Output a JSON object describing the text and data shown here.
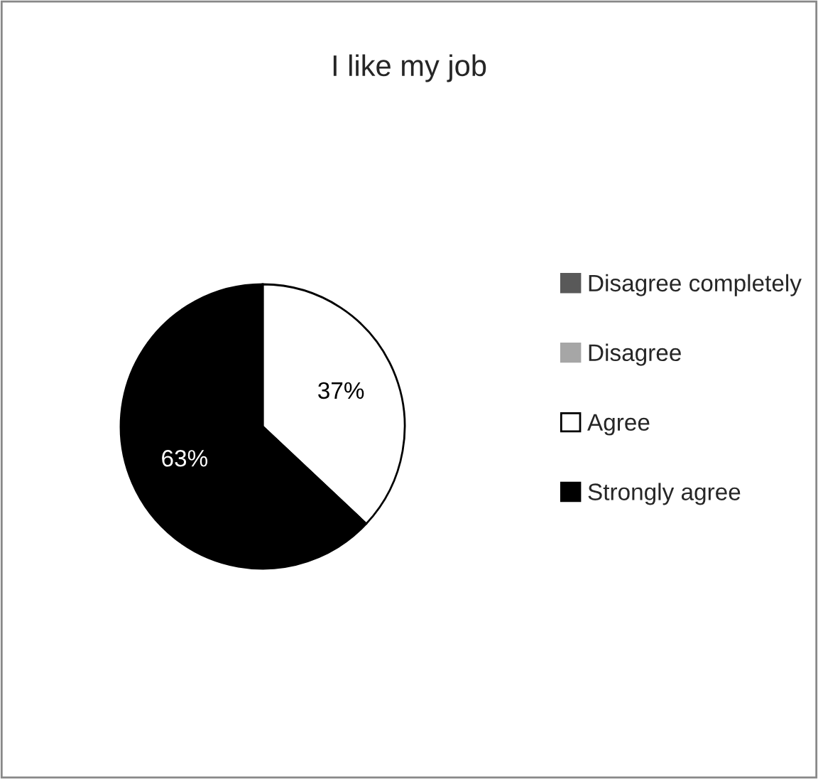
{
  "chart_data": {
    "type": "pie",
    "title": "I like my job",
    "categories": [
      "Disagree completely",
      "Disagree",
      "Agree",
      "Strongly agree"
    ],
    "values": [
      0,
      0,
      37,
      63
    ],
    "colors": [
      "#595959",
      "#a6a6a6",
      "#ffffff",
      "#000000"
    ],
    "value_labels": [
      null,
      null,
      "37%",
      "63%"
    ],
    "legend": "right"
  }
}
